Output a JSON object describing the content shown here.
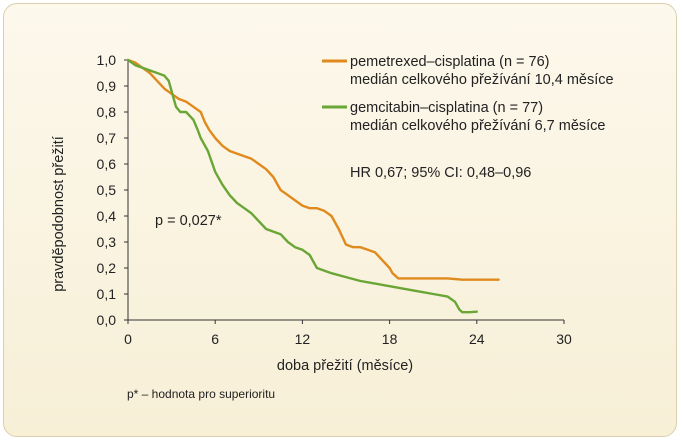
{
  "chart_data": {
    "type": "line",
    "title": "",
    "xlabel": "doba přežití (měsíce)",
    "ylabel": "pravděpodobnost přežití",
    "xlim": [
      0,
      30
    ],
    "ylim": [
      0,
      1.0
    ],
    "xticks": [
      0,
      6,
      12,
      18,
      24,
      30
    ],
    "xtick_labels": [
      "0",
      "6",
      "12",
      "18",
      "24",
      "30"
    ],
    "yticks": [
      0,
      0.1,
      0.2,
      0.3,
      0.4,
      0.5,
      0.6,
      0.7,
      0.8,
      0.9,
      1.0
    ],
    "ytick_labels": [
      "0,0",
      "0,1",
      "0,2",
      "0,3",
      "0,4",
      "0,5",
      "0,6",
      "0,7",
      "0,8",
      "0,9",
      "1,0"
    ],
    "grid": false,
    "legend_position": "top-right",
    "series": [
      {
        "name": "pemetrexed–cisplatina (n = 76)",
        "subtitle": "medián celkového přežívání 10,4 měsíce",
        "color": "#e08a1e",
        "x": [
          0,
          0.5,
          1,
          1.5,
          2,
          2.5,
          3,
          3.5,
          4,
          4.5,
          5,
          5.3,
          5.6,
          6,
          6.5,
          7,
          7.5,
          8,
          8.5,
          9,
          9.5,
          10,
          10.5,
          11,
          11.5,
          12,
          12.5,
          13,
          13.5,
          14,
          14.5,
          15,
          15.5,
          16,
          16.5,
          17,
          17.5,
          18,
          18.2,
          18.4,
          18.6,
          19,
          20,
          21,
          22,
          23,
          24,
          25,
          25.5
        ],
        "y": [
          1.0,
          0.99,
          0.97,
          0.95,
          0.92,
          0.89,
          0.87,
          0.85,
          0.84,
          0.82,
          0.8,
          0.76,
          0.73,
          0.7,
          0.67,
          0.65,
          0.64,
          0.63,
          0.62,
          0.6,
          0.58,
          0.55,
          0.5,
          0.48,
          0.46,
          0.44,
          0.43,
          0.43,
          0.42,
          0.4,
          0.35,
          0.29,
          0.28,
          0.28,
          0.27,
          0.26,
          0.23,
          0.2,
          0.18,
          0.17,
          0.16,
          0.16,
          0.16,
          0.16,
          0.16,
          0.155,
          0.155,
          0.155,
          0.155
        ]
      },
      {
        "name": "gemcitabin–cisplatina (n = 77)",
        "subtitle": "medián celkového přežívání 6,7 měsíce",
        "color": "#6aa636",
        "x": [
          0,
          0.5,
          1,
          1.5,
          2,
          2.5,
          2.8,
          3,
          3.3,
          3.6,
          4,
          4.5,
          4.8,
          5,
          5.5,
          6,
          6.5,
          7,
          7.5,
          8,
          8.5,
          9,
          9.5,
          10,
          10.5,
          11,
          11.5,
          12,
          12.5,
          13,
          13.5,
          14,
          15,
          16,
          17,
          18,
          19,
          20,
          21,
          22,
          22.5,
          22.8,
          23,
          23.5,
          24
        ],
        "y": [
          1.0,
          0.98,
          0.97,
          0.96,
          0.95,
          0.94,
          0.92,
          0.88,
          0.82,
          0.8,
          0.8,
          0.77,
          0.73,
          0.7,
          0.65,
          0.57,
          0.52,
          0.48,
          0.45,
          0.43,
          0.41,
          0.38,
          0.35,
          0.34,
          0.33,
          0.3,
          0.28,
          0.27,
          0.25,
          0.2,
          0.19,
          0.18,
          0.165,
          0.15,
          0.14,
          0.13,
          0.12,
          0.11,
          0.1,
          0.09,
          0.07,
          0.04,
          0.03,
          0.03,
          0.032
        ]
      }
    ],
    "annotations": {
      "pvalue": "p = 0,027*",
      "hr": "HR 0,67; 95% CI: 0,48–0,96",
      "footnote": "p* – hodnota pro superioritu"
    }
  }
}
